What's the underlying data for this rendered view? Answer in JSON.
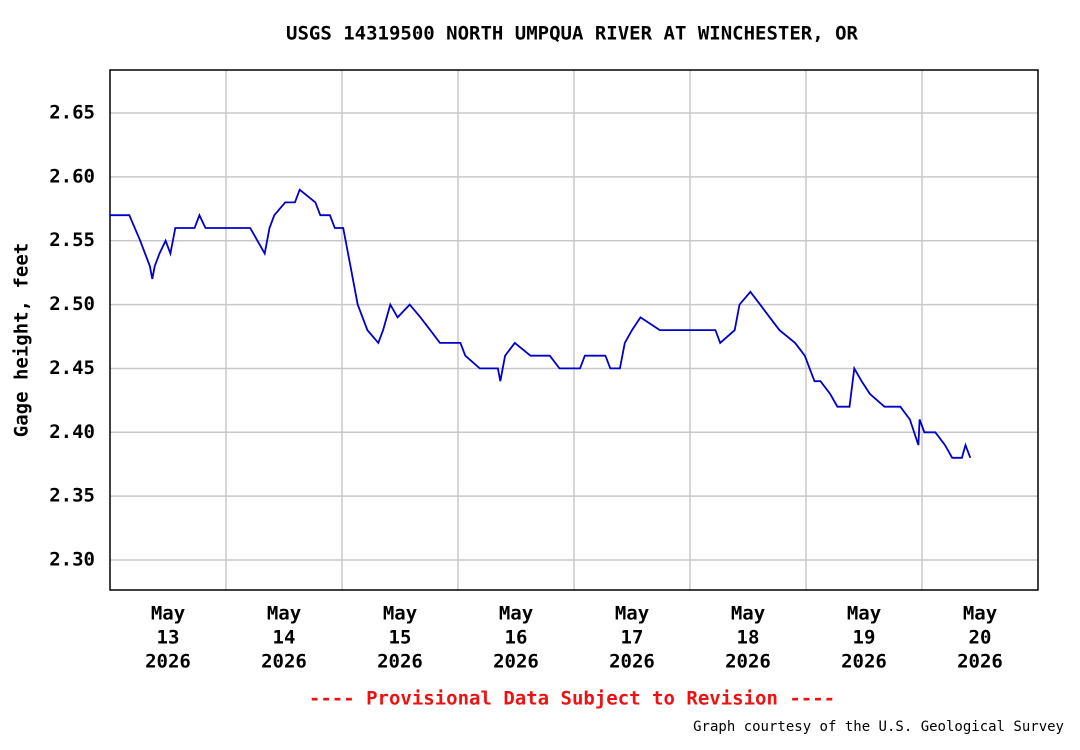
{
  "chart_data": {
    "type": "line",
    "title": "USGS 14319500 NORTH UMPQUA RIVER AT WINCHESTER, OR",
    "ylabel": "Gage height, feet",
    "annotations": [
      "---- Provisional Data Subject to Revision ----",
      "Graph courtesy of the U.S. Geological Survey"
    ],
    "color": "#0000cc",
    "grid": true,
    "xlim": [
      "2026-05-13T00:00",
      "2026-05-21T00:00"
    ],
    "xgrid": [
      "2026-05-14T00:00",
      "2026-05-15T00:00",
      "2026-05-16T00:00",
      "2026-05-17T00:00",
      "2026-05-18T00:00",
      "2026-05-19T00:00",
      "2026-05-20T00:00"
    ],
    "xticks": [
      {
        "value": "2026-05-13T12:00",
        "label": [
          "May",
          "13",
          "2026"
        ]
      },
      {
        "value": "2026-05-14T12:00",
        "label": [
          "May",
          "14",
          "2026"
        ]
      },
      {
        "value": "2026-05-15T12:00",
        "label": [
          "May",
          "15",
          "2026"
        ]
      },
      {
        "value": "2026-05-16T12:00",
        "label": [
          "May",
          "16",
          "2026"
        ]
      },
      {
        "value": "2026-05-17T12:00",
        "label": [
          "May",
          "17",
          "2026"
        ]
      },
      {
        "value": "2026-05-18T12:00",
        "label": [
          "May",
          "18",
          "2026"
        ]
      },
      {
        "value": "2026-05-19T12:00",
        "label": [
          "May",
          "19",
          "2026"
        ]
      },
      {
        "value": "2026-05-20T12:00",
        "label": [
          "May",
          "20",
          "2026"
        ]
      }
    ],
    "ylim": [
      2.2765,
      2.6837
    ],
    "yticks": [
      {
        "value": 2.3,
        "label": "2.30"
      },
      {
        "value": 2.35,
        "label": "2.35"
      },
      {
        "value": 2.4,
        "label": "2.40"
      },
      {
        "value": 2.45,
        "label": "2.45"
      },
      {
        "value": 2.5,
        "label": "2.50"
      },
      {
        "value": 2.55,
        "label": "2.55"
      },
      {
        "value": 2.6,
        "label": "2.60"
      },
      {
        "value": 2.65,
        "label": "2.65"
      }
    ],
    "x": [
      "2026-05-13T00:00",
      "2026-05-13T04:00",
      "2026-05-13T06:15",
      "2026-05-13T08:15",
      "2026-05-13T08:45",
      "2026-05-13T09:15",
      "2026-05-13T10:15",
      "2026-05-13T11:30",
      "2026-05-13T12:30",
      "2026-05-13T13:30",
      "2026-05-13T17:30",
      "2026-05-13T18:30",
      "2026-05-13T19:45",
      "2026-05-14T05:00",
      "2026-05-14T06:30",
      "2026-05-14T08:00",
      "2026-05-14T09:00",
      "2026-05-14T10:00",
      "2026-05-14T12:15",
      "2026-05-14T14:15",
      "2026-05-14T15:15",
      "2026-05-14T18:30",
      "2026-05-14T19:30",
      "2026-05-14T21:30",
      "2026-05-14T22:30",
      "2026-05-15T00:15",
      "2026-05-15T01:45",
      "2026-05-15T03:15",
      "2026-05-15T05:15",
      "2026-05-15T07:30",
      "2026-05-15T08:30",
      "2026-05-15T10:00",
      "2026-05-15T11:30",
      "2026-05-15T14:00",
      "2026-05-15T16:15",
      "2026-05-15T18:15",
      "2026-05-15T20:15",
      "2026-05-16T00:30",
      "2026-05-16T01:30",
      "2026-05-16T04:30",
      "2026-05-16T08:15",
      "2026-05-16T08:45",
      "2026-05-16T09:45",
      "2026-05-16T11:45",
      "2026-05-16T15:00",
      "2026-05-16T19:00",
      "2026-05-16T21:00",
      "2026-05-17T01:15",
      "2026-05-17T02:15",
      "2026-05-17T06:30",
      "2026-05-17T07:30",
      "2026-05-17T09:30",
      "2026-05-17T10:30",
      "2026-05-17T12:00",
      "2026-05-17T13:45",
      "2026-05-17T17:45",
      "2026-05-17T21:45",
      "2026-05-18T05:15",
      "2026-05-18T06:15",
      "2026-05-18T09:15",
      "2026-05-18T10:15",
      "2026-05-18T12:30",
      "2026-05-18T14:30",
      "2026-05-18T16:30",
      "2026-05-18T18:30",
      "2026-05-18T21:45",
      "2026-05-18T23:45",
      "2026-05-19T01:45",
      "2026-05-19T03:00",
      "2026-05-19T05:00",
      "2026-05-19T06:30",
      "2026-05-19T09:00",
      "2026-05-19T10:00",
      "2026-05-19T11:30",
      "2026-05-19T13:15",
      "2026-05-19T16:15",
      "2026-05-19T19:30",
      "2026-05-19T21:30",
      "2026-05-19T23:15",
      "2026-05-19T23:30",
      "2026-05-20T00:30",
      "2026-05-20T02:45",
      "2026-05-20T04:45",
      "2026-05-20T06:15",
      "2026-05-20T08:15",
      "2026-05-20T09:00",
      "2026-05-20T10:00"
    ],
    "values": [
      2.57,
      2.57,
      2.55,
      2.53,
      2.52,
      2.53,
      2.54,
      2.55,
      2.54,
      2.56,
      2.56,
      2.57,
      2.56,
      2.56,
      2.55,
      2.54,
      2.56,
      2.57,
      2.58,
      2.58,
      2.59,
      2.58,
      2.57,
      2.57,
      2.56,
      2.56,
      2.53,
      2.5,
      2.48,
      2.47,
      2.48,
      2.5,
      2.49,
      2.5,
      2.49,
      2.48,
      2.47,
      2.47,
      2.46,
      2.45,
      2.45,
      2.44,
      2.46,
      2.47,
      2.46,
      2.46,
      2.45,
      2.45,
      2.46,
      2.46,
      2.45,
      2.45,
      2.47,
      2.48,
      2.49,
      2.48,
      2.48,
      2.48,
      2.47,
      2.48,
      2.5,
      2.51,
      2.5,
      2.49,
      2.48,
      2.47,
      2.46,
      2.44,
      2.44,
      2.43,
      2.42,
      2.42,
      2.45,
      2.44,
      2.43,
      2.42,
      2.42,
      2.41,
      2.39,
      2.41,
      2.4,
      2.4,
      2.39,
      2.38,
      2.38,
      2.39,
      2.38
    ]
  }
}
